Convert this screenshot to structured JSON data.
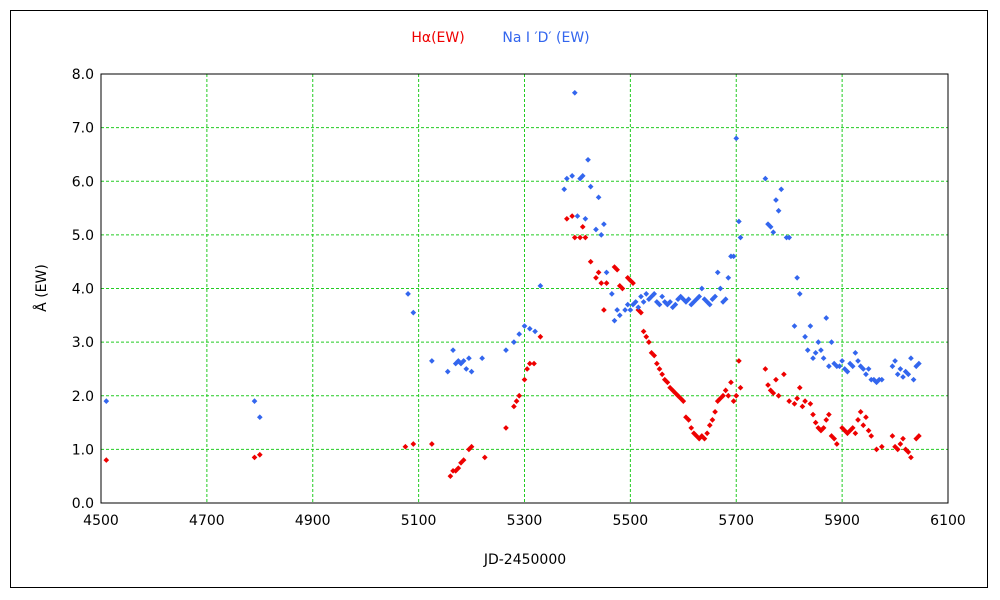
{
  "chart_data": {
    "type": "scatter",
    "xlabel": "JD-2450000",
    "ylabel": "Å (EW)",
    "xlim": [
      4500,
      6100
    ],
    "ylim": [
      0.0,
      8.0
    ],
    "xticks": [
      4500,
      4700,
      4900,
      5100,
      5300,
      5500,
      5700,
      5900,
      6100
    ],
    "xtick_labels": [
      "4500",
      "4700",
      "4900",
      "5100",
      "5300",
      "5500",
      "5700",
      "5900",
      "6100"
    ],
    "yticks": [
      0,
      1,
      2,
      3,
      4,
      5,
      6,
      7,
      8
    ],
    "ytick_labels": [
      "0.0",
      "1.0",
      "2.0",
      "3.0",
      "4.0",
      "5.0",
      "6.0",
      "7.0",
      "8.0"
    ],
    "grid": true,
    "legend_position": "top-center",
    "series": [
      {
        "name": "Hα(EW)",
        "color": "#ee0000",
        "points": [
          [
            4510,
            0.8
          ],
          [
            4790,
            0.85
          ],
          [
            4800,
            0.9
          ],
          [
            5075,
            1.05
          ],
          [
            5090,
            1.1
          ],
          [
            5125,
            1.1
          ],
          [
            5160,
            0.5
          ],
          [
            5165,
            0.6
          ],
          [
            5170,
            0.6
          ],
          [
            5175,
            0.65
          ],
          [
            5180,
            0.75
          ],
          [
            5185,
            0.8
          ],
          [
            5195,
            1.0
          ],
          [
            5200,
            1.05
          ],
          [
            5225,
            0.85
          ],
          [
            5265,
            1.4
          ],
          [
            5280,
            1.8
          ],
          [
            5285,
            1.9
          ],
          [
            5290,
            2.0
          ],
          [
            5300,
            2.3
          ],
          [
            5305,
            2.5
          ],
          [
            5310,
            2.6
          ],
          [
            5318,
            2.6
          ],
          [
            5330,
            3.1
          ],
          [
            5380,
            5.3
          ],
          [
            5390,
            5.35
          ],
          [
            5395,
            4.95
          ],
          [
            5405,
            4.95
          ],
          [
            5410,
            5.15
          ],
          [
            5415,
            4.95
          ],
          [
            5425,
            4.5
          ],
          [
            5435,
            4.2
          ],
          [
            5440,
            4.3
          ],
          [
            5445,
            4.1
          ],
          [
            5450,
            3.6
          ],
          [
            5455,
            4.1
          ],
          [
            5470,
            4.4
          ],
          [
            5475,
            4.35
          ],
          [
            5480,
            4.05
          ],
          [
            5485,
            4.0
          ],
          [
            5495,
            4.2
          ],
          [
            5500,
            4.15
          ],
          [
            5505,
            4.1
          ],
          [
            5515,
            3.6
          ],
          [
            5520,
            3.55
          ],
          [
            5525,
            3.2
          ],
          [
            5530,
            3.1
          ],
          [
            5535,
            3.0
          ],
          [
            5540,
            2.8
          ],
          [
            5545,
            2.75
          ],
          [
            5550,
            2.6
          ],
          [
            5555,
            2.5
          ],
          [
            5560,
            2.4
          ],
          [
            5565,
            2.3
          ],
          [
            5570,
            2.25
          ],
          [
            5575,
            2.15
          ],
          [
            5580,
            2.1
          ],
          [
            5585,
            2.05
          ],
          [
            5590,
            2.0
          ],
          [
            5595,
            1.95
          ],
          [
            5600,
            1.9
          ],
          [
            5605,
            1.6
          ],
          [
            5610,
            1.55
          ],
          [
            5615,
            1.4
          ],
          [
            5620,
            1.3
          ],
          [
            5625,
            1.25
          ],
          [
            5630,
            1.2
          ],
          [
            5635,
            1.25
          ],
          [
            5640,
            1.2
          ],
          [
            5645,
            1.3
          ],
          [
            5650,
            1.45
          ],
          [
            5655,
            1.55
          ],
          [
            5660,
            1.7
          ],
          [
            5665,
            1.9
          ],
          [
            5670,
            1.95
          ],
          [
            5675,
            2.0
          ],
          [
            5680,
            2.1
          ],
          [
            5685,
            2.0
          ],
          [
            5690,
            2.25
          ],
          [
            5695,
            1.9
          ],
          [
            5700,
            2.0
          ],
          [
            5705,
            2.65
          ],
          [
            5708,
            2.15
          ],
          [
            5755,
            2.5
          ],
          [
            5760,
            2.2
          ],
          [
            5765,
            2.1
          ],
          [
            5770,
            2.05
          ],
          [
            5775,
            2.3
          ],
          [
            5780,
            2.0
          ],
          [
            5790,
            2.4
          ],
          [
            5800,
            1.9
          ],
          [
            5810,
            1.85
          ],
          [
            5815,
            1.95
          ],
          [
            5820,
            2.15
          ],
          [
            5825,
            1.8
          ],
          [
            5830,
            1.9
          ],
          [
            5840,
            1.85
          ],
          [
            5845,
            1.65
          ],
          [
            5850,
            1.5
          ],
          [
            5855,
            1.4
          ],
          [
            5860,
            1.35
          ],
          [
            5865,
            1.4
          ],
          [
            5870,
            1.55
          ],
          [
            5875,
            1.65
          ],
          [
            5880,
            1.25
          ],
          [
            5885,
            1.2
          ],
          [
            5890,
            1.1
          ],
          [
            5900,
            1.4
          ],
          [
            5905,
            1.35
          ],
          [
            5910,
            1.3
          ],
          [
            5915,
            1.35
          ],
          [
            5920,
            1.4
          ],
          [
            5925,
            1.3
          ],
          [
            5930,
            1.55
          ],
          [
            5935,
            1.7
          ],
          [
            5940,
            1.45
          ],
          [
            5945,
            1.6
          ],
          [
            5950,
            1.35
          ],
          [
            5955,
            1.25
          ],
          [
            5965,
            1.0
          ],
          [
            5975,
            1.05
          ],
          [
            5995,
            1.25
          ],
          [
            6000,
            1.05
          ],
          [
            6005,
            1.0
          ],
          [
            6010,
            1.1
          ],
          [
            6015,
            1.2
          ],
          [
            6020,
            1.0
          ],
          [
            6025,
            0.95
          ],
          [
            6030,
            0.85
          ],
          [
            6040,
            1.2
          ],
          [
            6045,
            1.25
          ]
        ]
      },
      {
        "name": "Na I ′D′ (EW)",
        "color": "#3366ee",
        "points": [
          [
            4510,
            1.9
          ],
          [
            4790,
            1.9
          ],
          [
            4800,
            1.6
          ],
          [
            5080,
            3.9
          ],
          [
            5090,
            3.55
          ],
          [
            5125,
            2.65
          ],
          [
            5155,
            2.45
          ],
          [
            5165,
            2.85
          ],
          [
            5170,
            2.6
          ],
          [
            5175,
            2.65
          ],
          [
            5180,
            2.6
          ],
          [
            5185,
            2.65
          ],
          [
            5190,
            2.5
          ],
          [
            5195,
            2.7
          ],
          [
            5200,
            2.45
          ],
          [
            5220,
            2.7
          ],
          [
            5265,
            2.85
          ],
          [
            5280,
            3.0
          ],
          [
            5290,
            3.15
          ],
          [
            5300,
            3.3
          ],
          [
            5310,
            3.25
          ],
          [
            5320,
            3.2
          ],
          [
            5330,
            4.05
          ],
          [
            5375,
            5.85
          ],
          [
            5380,
            6.05
          ],
          [
            5390,
            6.1
          ],
          [
            5395,
            7.65
          ],
          [
            5400,
            5.35
          ],
          [
            5405,
            6.05
          ],
          [
            5410,
            6.1
          ],
          [
            5415,
            5.3
          ],
          [
            5420,
            6.4
          ],
          [
            5425,
            5.9
          ],
          [
            5435,
            5.1
          ],
          [
            5440,
            5.7
          ],
          [
            5445,
            5.0
          ],
          [
            5450,
            5.2
          ],
          [
            5455,
            4.3
          ],
          [
            5465,
            3.9
          ],
          [
            5470,
            3.4
          ],
          [
            5475,
            3.6
          ],
          [
            5480,
            3.5
          ],
          [
            5490,
            3.6
          ],
          [
            5495,
            3.7
          ],
          [
            5500,
            3.6
          ],
          [
            5505,
            3.7
          ],
          [
            5510,
            3.75
          ],
          [
            5515,
            3.65
          ],
          [
            5520,
            3.85
          ],
          [
            5525,
            3.75
          ],
          [
            5530,
            3.9
          ],
          [
            5535,
            3.8
          ],
          [
            5540,
            3.85
          ],
          [
            5545,
            3.9
          ],
          [
            5550,
            3.75
          ],
          [
            5555,
            3.7
          ],
          [
            5560,
            3.85
          ],
          [
            5565,
            3.75
          ],
          [
            5570,
            3.7
          ],
          [
            5575,
            3.75
          ],
          [
            5580,
            3.65
          ],
          [
            5585,
            3.7
          ],
          [
            5590,
            3.8
          ],
          [
            5595,
            3.85
          ],
          [
            5600,
            3.8
          ],
          [
            5605,
            3.75
          ],
          [
            5610,
            3.8
          ],
          [
            5615,
            3.7
          ],
          [
            5620,
            3.75
          ],
          [
            5625,
            3.8
          ],
          [
            5630,
            3.85
          ],
          [
            5635,
            4.0
          ],
          [
            5640,
            3.8
          ],
          [
            5645,
            3.75
          ],
          [
            5650,
            3.7
          ],
          [
            5655,
            3.8
          ],
          [
            5660,
            3.85
          ],
          [
            5665,
            4.3
          ],
          [
            5670,
            4.0
          ],
          [
            5675,
            3.75
          ],
          [
            5680,
            3.8
          ],
          [
            5685,
            4.2
          ],
          [
            5690,
            4.6
          ],
          [
            5695,
            4.6
          ],
          [
            5700,
            6.8
          ],
          [
            5705,
            5.25
          ],
          [
            5708,
            4.95
          ],
          [
            5755,
            6.05
          ],
          [
            5760,
            5.2
          ],
          [
            5765,
            5.15
          ],
          [
            5770,
            5.05
          ],
          [
            5775,
            5.65
          ],
          [
            5780,
            5.45
          ],
          [
            5785,
            5.85
          ],
          [
            5795,
            4.95
          ],
          [
            5800,
            4.95
          ],
          [
            5810,
            3.3
          ],
          [
            5815,
            4.2
          ],
          [
            5820,
            3.9
          ],
          [
            5830,
            3.1
          ],
          [
            5835,
            2.85
          ],
          [
            5840,
            3.3
          ],
          [
            5845,
            2.7
          ],
          [
            5850,
            2.8
          ],
          [
            5855,
            3.0
          ],
          [
            5860,
            2.85
          ],
          [
            5865,
            2.7
          ],
          [
            5870,
            3.45
          ],
          [
            5875,
            2.55
          ],
          [
            5880,
            3.0
          ],
          [
            5885,
            2.6
          ],
          [
            5890,
            2.55
          ],
          [
            5895,
            2.55
          ],
          [
            5900,
            2.65
          ],
          [
            5905,
            2.5
          ],
          [
            5910,
            2.45
          ],
          [
            5915,
            2.6
          ],
          [
            5920,
            2.55
          ],
          [
            5925,
            2.8
          ],
          [
            5930,
            2.65
          ],
          [
            5935,
            2.55
          ],
          [
            5940,
            2.5
          ],
          [
            5945,
            2.4
          ],
          [
            5950,
            2.5
          ],
          [
            5955,
            2.3
          ],
          [
            5960,
            2.3
          ],
          [
            5965,
            2.25
          ],
          [
            5970,
            2.3
          ],
          [
            5975,
            2.3
          ],
          [
            5995,
            2.55
          ],
          [
            6000,
            2.65
          ],
          [
            6005,
            2.4
          ],
          [
            6010,
            2.5
          ],
          [
            6015,
            2.35
          ],
          [
            6020,
            2.45
          ],
          [
            6025,
            2.4
          ],
          [
            6030,
            2.7
          ],
          [
            6035,
            2.3
          ],
          [
            6040,
            2.55
          ],
          [
            6045,
            2.6
          ]
        ]
      }
    ]
  }
}
